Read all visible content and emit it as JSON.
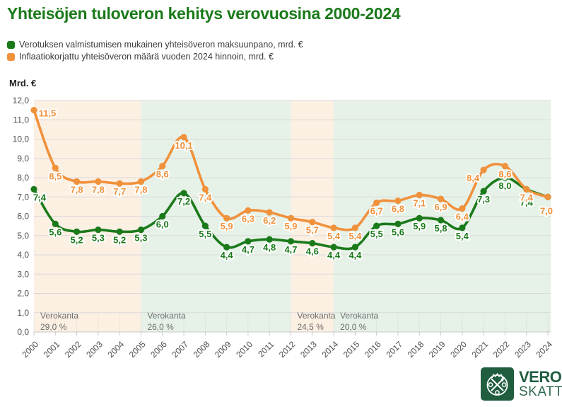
{
  "title": "Yhteisöjen tuloveron kehitys verovuosina 2000-2024",
  "y_axis_title": "Mrd. €",
  "legend": {
    "items": [
      {
        "label": "Verotuksen valmistumisen mukainen yhteisöveron maksuunpano, mrd. €",
        "color": "#1a7a1a"
      },
      {
        "label": "Inflaatiokorjattu yhteisöveron määrä vuoden 2024 hinnoin, mrd. €",
        "color": "#f0913c"
      }
    ]
  },
  "chart_data": {
    "type": "line",
    "x": [
      2000,
      2001,
      2002,
      2003,
      2004,
      2005,
      2006,
      2007,
      2008,
      2009,
      2010,
      2011,
      2012,
      2013,
      2014,
      2015,
      2016,
      2017,
      2018,
      2019,
      2020,
      2021,
      2022,
      2023,
      2024
    ],
    "series": [
      {
        "name": "Verotuksen valmistumisen mukainen yhteisöveron maksuunpano, mrd. €",
        "color": "#1a7a1a",
        "values": [
          7.4,
          5.6,
          5.2,
          5.3,
          5.2,
          5.3,
          6.0,
          7.2,
          5.5,
          4.4,
          4.7,
          4.8,
          4.7,
          4.6,
          4.4,
          4.4,
          5.5,
          5.6,
          5.9,
          5.8,
          5.4,
          7.3,
          8.0,
          7.4,
          7.0
        ]
      },
      {
        "name": "Inflaatiokorjattu yhteisöveron määrä vuoden 2024 hinnoin, mrd. €",
        "color": "#f0913c",
        "values": [
          11.5,
          8.5,
          7.8,
          7.8,
          7.7,
          7.8,
          8.6,
          10.1,
          7.4,
          5.9,
          6.3,
          6.2,
          5.9,
          5.7,
          5.4,
          5.4,
          6.7,
          6.8,
          7.1,
          6.9,
          6.4,
          8.4,
          8.6,
          7.4,
          7.0
        ]
      }
    ],
    "ylim": [
      0,
      12
    ],
    "ytick_step": 1,
    "ytick_labels": [
      "0,0",
      "1,0",
      "2,0",
      "3,0",
      "4,0",
      "5,0",
      "6,0",
      "7,0",
      "8,0",
      "9,0",
      "10,0",
      "11,0",
      "12,0"
    ],
    "grid": true,
    "legend_position": "top-left",
    "bands": [
      {
        "label": "Verokanta",
        "rate": "29,0 %",
        "from": 2000,
        "to": 2005,
        "color": "#fcf0e3"
      },
      {
        "label": "Verokanta",
        "rate": "26,0 %",
        "from": 2005,
        "to": 2012,
        "color": "#e6f2e8"
      },
      {
        "label": "Verokanta",
        "rate": "24,5 %",
        "from": 2012,
        "to": 2014,
        "color": "#fcf0e3"
      },
      {
        "label": "Verokanta",
        "rate": "20,0 %",
        "from": 2014,
        "to": null,
        "color": "#e6f2e8"
      }
    ]
  },
  "logo": {
    "line1": "VERO",
    "line2": "SKATT"
  }
}
